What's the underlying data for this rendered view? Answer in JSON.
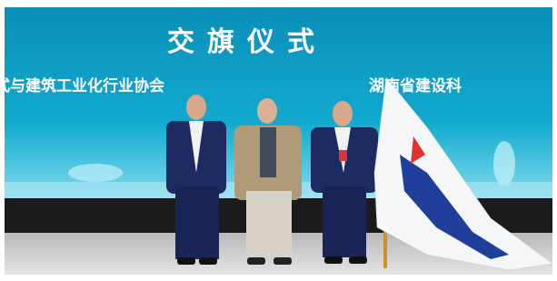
{
  "screen": {
    "title": "交旗仪式",
    "left_banner": "式与建筑工业化行业协会",
    "right_banner": "湖南省建设科"
  }
}
